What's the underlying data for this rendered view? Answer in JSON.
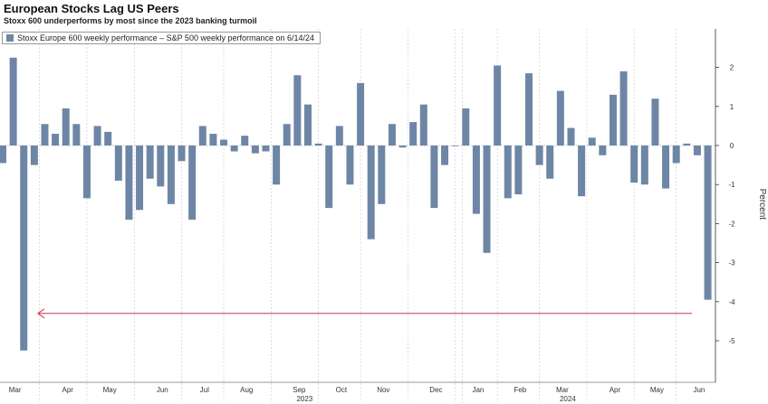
{
  "chart_data": {
    "type": "bar",
    "title": "European Stocks Lag US Peers",
    "subtitle": "Stoxx 600 underperforms by most since the 2023 banking turmoil",
    "series": [
      {
        "name": "Stoxx Europe 600 weekly performance – S&P 500 weekly performance on 6/14/24",
        "color": "#6e86a6",
        "values": [
          -0.45,
          2.25,
          -5.25,
          -0.5,
          0.55,
          0.3,
          0.95,
          0.55,
          -1.35,
          0.5,
          0.35,
          -0.9,
          -1.9,
          -1.65,
          -0.85,
          -1.05,
          -1.5,
          -0.4,
          -1.9,
          0.5,
          0.3,
          0.15,
          -0.15,
          0.25,
          -0.2,
          -0.15,
          -1.0,
          0.55,
          1.8,
          1.05,
          0.05,
          -1.6,
          0.5,
          -1.0,
          1.6,
          -2.4,
          -1.5,
          0.55,
          -0.05,
          0.6,
          1.05,
          -1.6,
          -0.5,
          0.0,
          0.95,
          -1.75,
          -2.75,
          2.05,
          -1.35,
          -1.25,
          1.85,
          -0.5,
          -0.85,
          1.4,
          0.45,
          -1.3,
          0.2,
          -0.25,
          1.3,
          1.9,
          -0.95,
          -1.0,
          1.2,
          -1.1,
          -0.45,
          0.05,
          -0.25,
          -3.95
        ]
      }
    ],
    "x_labels": [
      "Mar",
      "Apr",
      "May",
      "Jun",
      "Jul",
      "Aug",
      "Sep",
      "Oct",
      "Nov",
      "Dec",
      "Jan",
      "Feb",
      "Mar",
      "Apr",
      "May",
      "Jun"
    ],
    "x_label_week_index": [
      1,
      6,
      10,
      15,
      19,
      23,
      28,
      32,
      36,
      41,
      45,
      49,
      53,
      58,
      62,
      66
    ],
    "years": [
      "2023",
      "2024"
    ],
    "year_center_week_index": [
      28,
      53
    ],
    "ylabel": "Percent",
    "ylim": [
      -6,
      3
    ],
    "yticks": [
      -5,
      -4,
      -3,
      -2,
      -1,
      0,
      1,
      2
    ],
    "ytick_labels": [
      "-5",
      "-4",
      "-3",
      "-2",
      "-1",
      "0",
      "1",
      "2"
    ],
    "annotation": {
      "type": "arrow",
      "from_week_index": 66,
      "to_week_index": 3,
      "y": -4.0,
      "color": "#c8334f"
    },
    "grid": "vertical-dashed",
    "legend_position": "top-left"
  }
}
